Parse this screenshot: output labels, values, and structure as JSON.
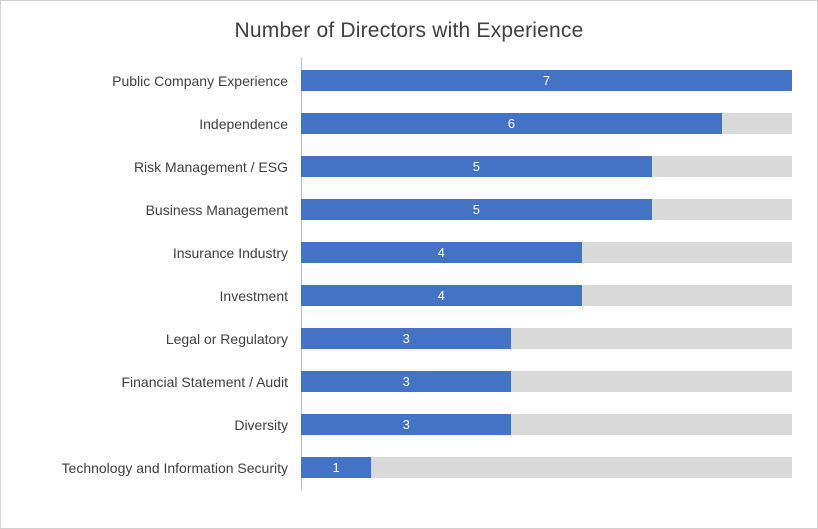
{
  "chart_data": {
    "type": "bar",
    "orientation": "horizontal",
    "title": "Number of Directors with Experience",
    "categories": [
      "Public Company Experience",
      "Independence",
      "Risk Management / ESG",
      "Business Management",
      "Insurance Industry",
      "Investment",
      "Legal or Regulatory",
      "Financial Statement / Audit",
      "Diversity",
      "Technology and Information Security"
    ],
    "values": [
      7,
      6,
      5,
      5,
      4,
      4,
      3,
      3,
      3,
      1
    ],
    "xlim": [
      0,
      7
    ],
    "xlabel": "",
    "ylabel": "",
    "grid": false,
    "legend": false,
    "bar_color": "#4472C4",
    "track_color": "#D9D9D9",
    "value_label_color": "#FFFFFF",
    "title_color": "#404040",
    "label_color": "#404040"
  }
}
